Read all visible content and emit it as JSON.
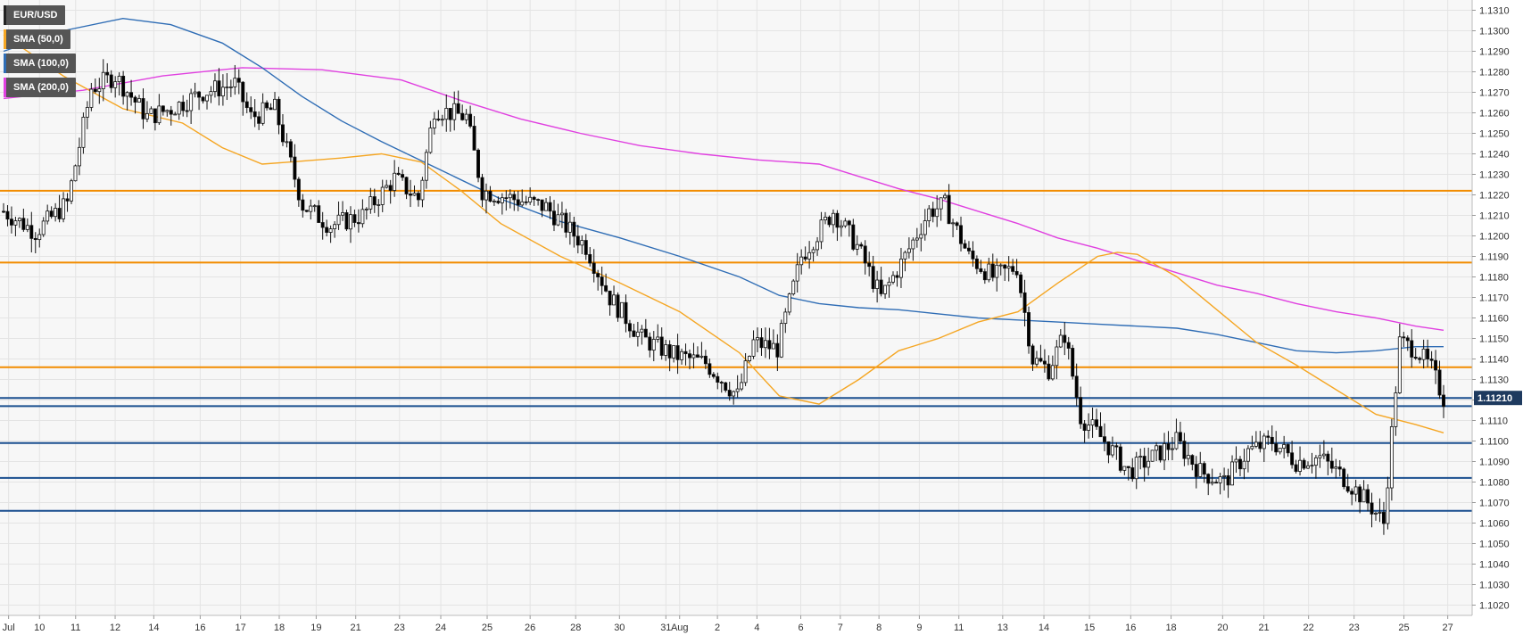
{
  "chart_data": {
    "type": "candlestick",
    "symbol": "EUR/USD",
    "ylim": [
      1.1015,
      1.1315
    ],
    "y_tick_labels": [
      "1.1310",
      "1.1300",
      "1.1290",
      "1.1280",
      "1.1270",
      "1.1260",
      "1.1250",
      "1.1240",
      "1.1230",
      "1.1220",
      "1.1210",
      "1.1200",
      "1.1190",
      "1.1180",
      "1.1170",
      "1.1160",
      "1.1150",
      "1.1140",
      "1.1130",
      "1.1120",
      "1.1110",
      "1.1100",
      "1.1090",
      "1.1080",
      "1.1070",
      "1.1060",
      "1.1050",
      "1.1040",
      "1.1030",
      "1.1020"
    ],
    "x_tick_labels": [
      "Jul",
      "10",
      "11",
      "12",
      "14",
      "16",
      "17",
      "18",
      "19",
      "21",
      "23",
      "24",
      "25",
      "26",
      "28",
      "30",
      "31",
      "Aug",
      "2",
      "4",
      "6",
      "7",
      "8",
      "9",
      "11",
      "13",
      "14",
      "15",
      "16",
      "18",
      "20",
      "21",
      "22",
      "23",
      "25",
      "27"
    ],
    "last_price": "1.11210",
    "legend": [
      {
        "label": "EUR/USD",
        "color": "#222222"
      },
      {
        "label": "SMA (50,0)",
        "color": "#f5a623"
      },
      {
        "label": "SMA (100,0)",
        "color": "#2f6db5"
      },
      {
        "label": "SMA (200,0)",
        "color": "#e040e0"
      }
    ],
    "resistance_levels": [
      1.1222,
      1.1187,
      1.1136
    ],
    "support_levels": [
      1.1121,
      1.1117,
      1.1099,
      1.1082,
      1.1066
    ],
    "colors": {
      "up_candle": "#ffffff",
      "down_candle": "#000000",
      "sma50": "#f5a623",
      "sma100": "#2f6db5",
      "sma200": "#e040e0",
      "resistance": "#f28c00",
      "support": "#1a4f8f",
      "price_tag": "#1e3a5f",
      "grid": "#e4e4e4",
      "plot_bg": "#f7f7f7"
    },
    "sma50": [
      [
        0,
        1.1298
      ],
      [
        15,
        1.1278
      ],
      [
        30,
        1.1262
      ],
      [
        45,
        1.1255
      ],
      [
        55,
        1.1243
      ],
      [
        65,
        1.1235
      ],
      [
        72,
        1.1236
      ],
      [
        85,
        1.1238
      ],
      [
        95,
        1.124
      ],
      [
        105,
        1.1236
      ],
      [
        115,
        1.1222
      ],
      [
        125,
        1.1206
      ],
      [
        140,
        1.119
      ],
      [
        155,
        1.1177
      ],
      [
        170,
        1.1163
      ],
      [
        185,
        1.1143
      ],
      [
        195,
        1.1122
      ],
      [
        205,
        1.1118
      ],
      [
        215,
        1.113
      ],
      [
        225,
        1.1144
      ],
      [
        235,
        1.115
      ],
      [
        245,
        1.1158
      ],
      [
        255,
        1.1163
      ],
      [
        265,
        1.1177
      ],
      [
        275,
        1.119
      ],
      [
        280,
        1.1192
      ],
      [
        285,
        1.1191
      ],
      [
        295,
        1.118
      ],
      [
        305,
        1.1164
      ],
      [
        315,
        1.1148
      ],
      [
        325,
        1.1137
      ],
      [
        335,
        1.1125
      ],
      [
        345,
        1.1113
      ],
      [
        355,
        1.1108
      ],
      [
        362,
        1.1104
      ]
    ],
    "sma100": [
      [
        0,
        1.129
      ],
      [
        15,
        1.13
      ],
      [
        30,
        1.1306
      ],
      [
        42,
        1.1303
      ],
      [
        55,
        1.1294
      ],
      [
        65,
        1.1282
      ],
      [
        75,
        1.1268
      ],
      [
        85,
        1.1256
      ],
      [
        95,
        1.1246
      ],
      [
        110,
        1.1232
      ],
      [
        125,
        1.1218
      ],
      [
        140,
        1.1207
      ],
      [
        155,
        1.1199
      ],
      [
        170,
        1.119
      ],
      [
        185,
        1.118
      ],
      [
        195,
        1.1171
      ],
      [
        205,
        1.1167
      ],
      [
        215,
        1.1165
      ],
      [
        225,
        1.1164
      ],
      [
        235,
        1.1162
      ],
      [
        245,
        1.116
      ],
      [
        255,
        1.1159
      ],
      [
        265,
        1.1158
      ],
      [
        275,
        1.1157
      ],
      [
        285,
        1.1156
      ],
      [
        295,
        1.1155
      ],
      [
        305,
        1.1152
      ],
      [
        315,
        1.1148
      ],
      [
        325,
        1.1144
      ],
      [
        335,
        1.1143
      ],
      [
        345,
        1.1144
      ],
      [
        355,
        1.1146
      ],
      [
        362,
        1.1146
      ]
    ],
    "sma200": [
      [
        0,
        1.1267
      ],
      [
        20,
        1.1271
      ],
      [
        40,
        1.1278
      ],
      [
        60,
        1.1282
      ],
      [
        80,
        1.1281
      ],
      [
        100,
        1.1276
      ],
      [
        115,
        1.1266
      ],
      [
        130,
        1.1257
      ],
      [
        145,
        1.125
      ],
      [
        160,
        1.1244
      ],
      [
        175,
        1.124
      ],
      [
        190,
        1.1237
      ],
      [
        205,
        1.1235
      ],
      [
        215,
        1.1229
      ],
      [
        225,
        1.1223
      ],
      [
        235,
        1.1218
      ],
      [
        245,
        1.1212
      ],
      [
        255,
        1.1206
      ],
      [
        265,
        1.1199
      ],
      [
        275,
        1.1194
      ],
      [
        285,
        1.1188
      ],
      [
        295,
        1.1182
      ],
      [
        305,
        1.1176
      ],
      [
        315,
        1.1172
      ],
      [
        325,
        1.1167
      ],
      [
        335,
        1.1163
      ],
      [
        345,
        1.116
      ],
      [
        355,
        1.1156
      ],
      [
        362,
        1.1154
      ]
    ]
  }
}
